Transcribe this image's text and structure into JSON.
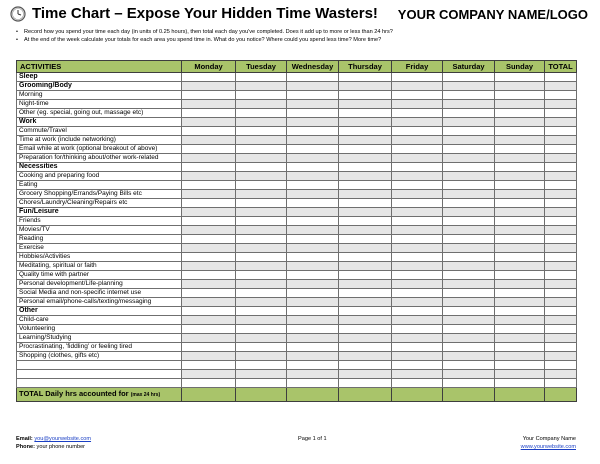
{
  "header": {
    "title": "Time Chart – Expose Your Hidden Time Wasters!",
    "company": "YOUR COMPANY NAME/LOGO"
  },
  "instructions": [
    "Record how you spend your time each day (in units of 0.25 hours), then total each day you've completed. Does it add up to more or less than 24 hrs?",
    "At the end of the week calculate your totals for each area you spend time in. What do you notice? Where could you spend less time? More time?"
  ],
  "table": {
    "columns": [
      "ACTIVITIES",
      "Monday",
      "Tuesday",
      "Wednesday",
      "Thursday",
      "Friday",
      "Saturday",
      "Sunday",
      "TOTAL"
    ],
    "rows": [
      {
        "label": "Sleep",
        "category": true
      },
      {
        "label": "Grooming/Body",
        "category": true
      },
      {
        "label": "Morning",
        "category": false
      },
      {
        "label": "Night-time",
        "category": false
      },
      {
        "label": "Other (eg. special, going out, massage etc)",
        "category": false
      },
      {
        "label": "Work",
        "category": true
      },
      {
        "label": "Commute/Travel",
        "category": false
      },
      {
        "label": "Time at work (include networking)",
        "category": false
      },
      {
        "label": "Email while at work (optional breakout of above)",
        "category": false
      },
      {
        "label": "Preparation for/thinking about/other work-related",
        "category": false
      },
      {
        "label": "Necessities",
        "category": true
      },
      {
        "label": "Cooking and preparing food",
        "category": false
      },
      {
        "label": "Eating",
        "category": false
      },
      {
        "label": "Grocery Shopping/Errands/Paying Bills etc",
        "category": false
      },
      {
        "label": "Chores/Laundry/Cleaning/Repairs etc",
        "category": false
      },
      {
        "label": "Fun/Leisure",
        "category": true
      },
      {
        "label": "Friends",
        "category": false
      },
      {
        "label": "Movies/TV",
        "category": false
      },
      {
        "label": "Reading",
        "category": false
      },
      {
        "label": "Exercise",
        "category": false
      },
      {
        "label": "Hobbies/Activities",
        "category": false
      },
      {
        "label": "Meditating, spiritual or faith",
        "category": false
      },
      {
        "label": "Quality time with partner",
        "category": false
      },
      {
        "label": "Personal development/Life-planning",
        "category": false
      },
      {
        "label": "Social Media and non-specific internet use",
        "category": false
      },
      {
        "label": "Personal email/phone-calls/texting/messaging",
        "category": false
      },
      {
        "label": "Other",
        "category": true
      },
      {
        "label": "Child-care",
        "category": false
      },
      {
        "label": "Volunteering",
        "category": false
      },
      {
        "label": "Learning/Studying",
        "category": false
      },
      {
        "label": "Procrastinating, 'fiddling' or feeling tired",
        "category": false
      },
      {
        "label": "Shopping (clothes, gifts etc)",
        "category": false
      },
      {
        "label": "",
        "category": false
      },
      {
        "label": "",
        "category": false
      },
      {
        "label": "",
        "category": false
      }
    ],
    "total_label": "TOTAL Daily hrs accounted for",
    "total_note": "(max 24 hrs)"
  },
  "footer": {
    "email_label": "Email:",
    "email_value": "you@yourwebsite.com",
    "phone_label": "Phone:",
    "phone_value": "your phone number",
    "page": "Page 1 of 1",
    "company_name": "Your Company Name",
    "website": "www.yourwebsite.com"
  },
  "colors": {
    "header_fill": "#a9c46a",
    "shade_fill": "#e6e6e6",
    "link": "#1a3fc4"
  }
}
